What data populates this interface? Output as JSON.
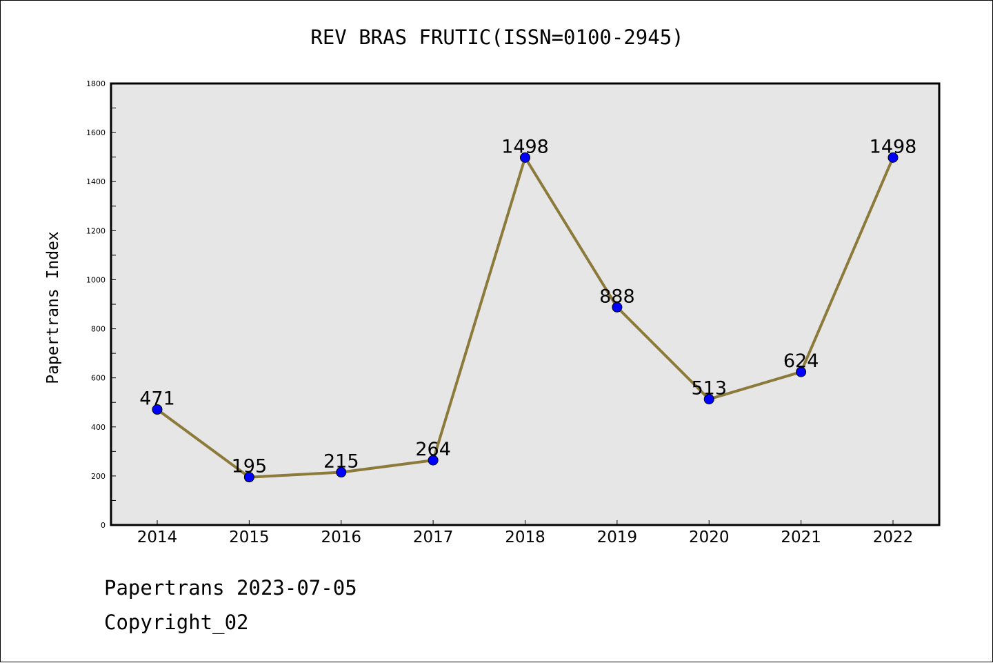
{
  "chart_data": {
    "type": "line",
    "title": "REV BRAS FRUTIC(ISSN=0100-2945)",
    "xlabel": "",
    "ylabel": "Papertrans Index",
    "categories": [
      "2014",
      "2015",
      "2016",
      "2017",
      "2018",
      "2019",
      "2020",
      "2021",
      "2022"
    ],
    "series": [
      {
        "values": [
          471,
          195,
          215,
          264,
          1498,
          888,
          513,
          624,
          1498
        ],
        "line_color": "#8b7a3a",
        "marker_color": "#0000ff"
      }
    ],
    "ylim": [
      0,
      1800
    ],
    "yticks": [
      0,
      200,
      400,
      600,
      800,
      1000,
      1200,
      1400,
      1600,
      1800
    ],
    "grid": false,
    "legend": "none",
    "plot_background": "#e6e6e6"
  },
  "footer": {
    "line1": "Papertrans 2023-07-05",
    "line2": "Copyright_02"
  }
}
